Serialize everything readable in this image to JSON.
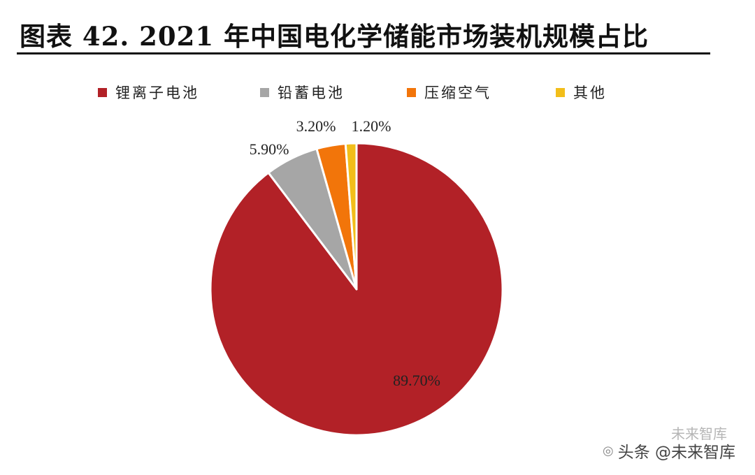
{
  "header": {
    "title": "图表 42. 2021 年中国电化学储能市场装机规模占比"
  },
  "chart_data": {
    "type": "pie",
    "title": "图表 42. 2021 年中国电化学储能市场装机规模占比",
    "legend_position": "top",
    "slices": [
      {
        "name": "锂离子电池",
        "value": 89.7,
        "label": "89.70%",
        "color": "#B22127"
      },
      {
        "name": "铅蓄电池",
        "value": 5.9,
        "label": "5.90%",
        "color": "#A6A6A6"
      },
      {
        "name": "压缩空气",
        "value": 3.2,
        "label": "3.20%",
        "color": "#F2750A"
      },
      {
        "name": "其他",
        "value": 1.2,
        "label": "1.20%",
        "color": "#F2BE1A"
      }
    ]
  },
  "watermark": {
    "text": "头条 @未来智库",
    "sub_text": "未来智库",
    "icon": "wechat-icon"
  }
}
